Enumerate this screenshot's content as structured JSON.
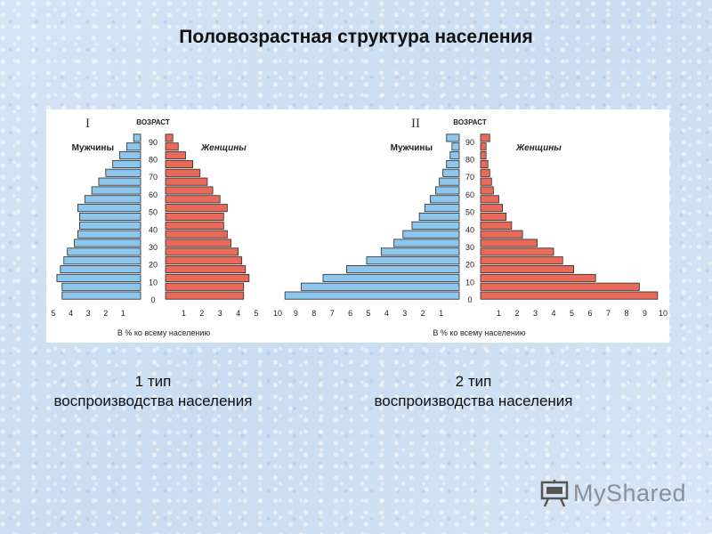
{
  "title": "Половозрастная структура населения",
  "captions": [
    {
      "line1": "1 тип",
      "line2": "воспроизводства населения"
    },
    {
      "line1": "2 тип",
      "line2": "воспроизводства населения"
    }
  ],
  "logo": {
    "text": "MyShared"
  },
  "chart_data": [
    {
      "type": "bar",
      "panel": "I",
      "age_label": "ВОЗРАСТ",
      "male_label": "Мужчины",
      "female_label": "Женщины",
      "footer": "В % ко всему населению",
      "age_ticks": [
        "90",
        "80",
        "70",
        "60",
        "50",
        "40",
        "30",
        "20",
        "10",
        "0"
      ],
      "x_ticks": [
        "5",
        "4",
        "3",
        "2",
        "1",
        "1",
        "2",
        "3",
        "4",
        "5"
      ],
      "xlim": [
        0,
        5
      ],
      "ages": [
        "0",
        "5",
        "10",
        "15",
        "20",
        "25",
        "30",
        "35",
        "40",
        "45",
        "50",
        "55",
        "60",
        "65",
        "70",
        "75",
        "80",
        "85",
        "90"
      ],
      "series": [
        {
          "name": "Мужчины",
          "color": "#8cc6ec",
          "values": [
            4.5,
            4.5,
            4.8,
            4.6,
            4.4,
            4.2,
            3.8,
            3.6,
            3.5,
            3.5,
            3.6,
            3.2,
            2.8,
            2.4,
            2.0,
            1.6,
            1.2,
            0.8,
            0.4
          ]
        },
        {
          "name": "Женщины",
          "color": "#ea6a5a",
          "values": [
            4.3,
            4.3,
            4.6,
            4.4,
            4.2,
            4.0,
            3.6,
            3.4,
            3.2,
            3.2,
            3.4,
            3.0,
            2.6,
            2.3,
            1.9,
            1.5,
            1.1,
            0.7,
            0.4
          ]
        }
      ]
    },
    {
      "type": "bar",
      "panel": "II",
      "age_label": "ВОЗРАСТ",
      "male_label": "Мужчины",
      "female_label": "Женщины",
      "footer": "В % ко всему населению",
      "age_ticks": [
        "90",
        "80",
        "70",
        "60",
        "50",
        "40",
        "30",
        "20",
        "10",
        "0"
      ],
      "x_ticks": [
        "10",
        "9",
        "8",
        "7",
        "6",
        "5",
        "4",
        "3",
        "2",
        "1",
        "1",
        "2",
        "3",
        "4",
        "5",
        "6",
        "7",
        "8",
        "9",
        "10"
      ],
      "xlim": [
        0,
        10
      ],
      "ages": [
        "0",
        "5",
        "10",
        "15",
        "20",
        "25",
        "30",
        "35",
        "40",
        "45",
        "50",
        "55",
        "60",
        "65",
        "70",
        "75",
        "80",
        "85",
        "90"
      ],
      "series": [
        {
          "name": "Мужчины",
          "color": "#8cc6ec",
          "values": [
            9.6,
            8.7,
            7.5,
            6.2,
            5.1,
            4.3,
            3.6,
            3.1,
            2.6,
            2.2,
            1.9,
            1.6,
            1.3,
            1.1,
            0.9,
            0.7,
            0.5,
            0.4,
            0.7
          ]
        },
        {
          "name": "Женщины",
          "color": "#ea6a5a",
          "values": [
            9.7,
            8.7,
            6.3,
            5.1,
            4.5,
            4.0,
            3.1,
            2.3,
            1.7,
            1.4,
            1.2,
            1.0,
            0.7,
            0.6,
            0.5,
            0.4,
            0.3,
            0.3,
            0.5
          ]
        }
      ]
    }
  ]
}
